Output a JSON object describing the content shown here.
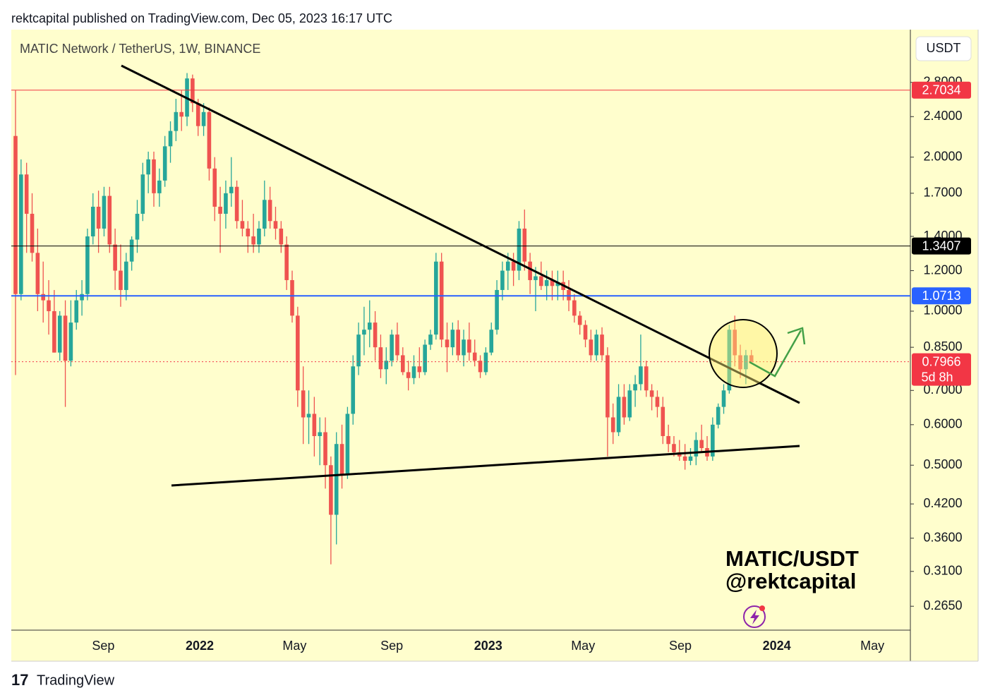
{
  "header": "rektcapital published on TradingView.com, Dec 05, 2023 16:17 UTC",
  "footer": "TradingView",
  "chart_data": {
    "type": "candlestick",
    "title": "MATIC Network / TetherUS, 1W, BINANCE",
    "currency": "USDT",
    "annotations": [
      "MATIC/USDT",
      "@rektcapital"
    ],
    "log": true,
    "up_color": "#26a69a",
    "down_color": "#ef5350",
    "ylim": [
      0.238,
      3.55
    ],
    "yticks": [
      {
        "value": 2.8,
        "label": "2.8000"
      },
      {
        "value": 2.4,
        "label": "2.4000"
      },
      {
        "value": 2,
        "label": "2.0000"
      },
      {
        "value": 1.7,
        "label": "1.7000"
      },
      {
        "value": 1.4,
        "label": "1.4000"
      },
      {
        "value": 1.2,
        "label": "1.2000"
      },
      {
        "value": 1,
        "label": "1.0000"
      },
      {
        "value": 0.85,
        "label": "0.8500"
      },
      {
        "value": 0.7,
        "label": "0.7000"
      },
      {
        "value": 0.6,
        "label": "0.6000"
      },
      {
        "value": 0.5,
        "label": "0.5000"
      },
      {
        "value": 0.42,
        "label": "0.4200"
      },
      {
        "value": 0.36,
        "label": "0.3600"
      },
      {
        "value": 0.31,
        "label": "0.3100"
      },
      {
        "value": 0.265,
        "label": "0.2650"
      }
    ],
    "xticks": [
      {
        "value": "2021-09",
        "label": "Sep"
      },
      {
        "value": "2022-01",
        "label": "2022"
      },
      {
        "value": "2022-05",
        "label": "May"
      },
      {
        "value": "2022-09",
        "label": "Sep"
      },
      {
        "value": "2023-01",
        "label": "2023"
      },
      {
        "value": "2023-05",
        "label": "May"
      },
      {
        "value": "2023-09",
        "label": "Sep"
      },
      {
        "value": "2024-01",
        "label": "2024"
      },
      {
        "value": "2024-05",
        "label": "May"
      }
    ],
    "levels": [
      {
        "value": 2.7034,
        "label": "2.7034",
        "color": "#f23645"
      },
      {
        "value": 1.3407,
        "label": "1.3407",
        "color": "#000000"
      },
      {
        "value": 1.0713,
        "label": "1.0713",
        "color": "#2962ff"
      }
    ],
    "last_price": {
      "value": 0.7966,
      "label": "0.7966",
      "countdown": "5d 8h",
      "color": "#f23645"
    },
    "ohlc": [
      [
        2.2,
        2.7,
        0.75,
        1.08
      ],
      [
        1.08,
        1.98,
        1.05,
        1.85
      ],
      [
        1.85,
        1.95,
        1.3,
        1.55
      ],
      [
        1.55,
        1.7,
        1.25,
        1.3
      ],
      [
        1.3,
        1.45,
        1.0,
        1.08
      ],
      [
        1.08,
        1.25,
        0.95,
        1.05
      ],
      [
        1.05,
        1.15,
        0.9,
        1.0
      ],
      [
        1.0,
        1.1,
        0.83,
        0.83
      ],
      [
        0.83,
        1.0,
        0.8,
        0.98
      ],
      [
        0.98,
        1.05,
        0.65,
        0.8
      ],
      [
        0.8,
        1.05,
        0.78,
        0.95
      ],
      [
        0.95,
        1.1,
        0.92,
        1.05
      ],
      [
        1.05,
        1.15,
        0.98,
        1.08
      ],
      [
        1.08,
        1.45,
        1.05,
        1.4
      ],
      [
        1.4,
        1.7,
        1.35,
        1.6
      ],
      [
        1.6,
        1.72,
        1.3,
        1.45
      ],
      [
        1.45,
        1.75,
        1.4,
        1.68
      ],
      [
        1.68,
        1.75,
        1.3,
        1.35
      ],
      [
        1.35,
        1.45,
        1.1,
        1.2
      ],
      [
        1.2,
        1.35,
        1.02,
        1.1
      ],
      [
        1.1,
        1.3,
        1.05,
        1.25
      ],
      [
        1.25,
        1.4,
        1.2,
        1.38
      ],
      [
        1.38,
        1.65,
        1.3,
        1.55
      ],
      [
        1.55,
        1.95,
        1.5,
        1.85
      ],
      [
        1.85,
        2.05,
        1.7,
        1.98
      ],
      [
        1.98,
        2.05,
        1.6,
        1.7
      ],
      [
        1.7,
        1.9,
        1.6,
        1.8
      ],
      [
        1.8,
        2.2,
        1.75,
        2.1
      ],
      [
        2.1,
        2.35,
        1.95,
        2.25
      ],
      [
        2.25,
        2.6,
        2.15,
        2.45
      ],
      [
        2.45,
        2.7,
        2.25,
        2.4
      ],
      [
        2.4,
        2.92,
        2.3,
        2.85
      ],
      [
        2.85,
        2.9,
        2.45,
        2.55
      ],
      [
        2.55,
        2.6,
        2.2,
        2.3
      ],
      [
        2.3,
        2.55,
        2.2,
        2.45
      ],
      [
        2.45,
        2.5,
        1.8,
        1.9
      ],
      [
        1.9,
        2.0,
        1.5,
        1.6
      ],
      [
        1.6,
        1.75,
        1.3,
        1.55
      ],
      [
        1.55,
        1.8,
        1.45,
        1.7
      ],
      [
        1.7,
        2.0,
        1.6,
        1.75
      ],
      [
        1.75,
        1.8,
        1.45,
        1.5
      ],
      [
        1.5,
        1.65,
        1.4,
        1.45
      ],
      [
        1.45,
        1.5,
        1.3,
        1.4
      ],
      [
        1.4,
        1.55,
        1.3,
        1.35
      ],
      [
        1.35,
        1.5,
        1.3,
        1.45
      ],
      [
        1.45,
        1.8,
        1.4,
        1.65
      ],
      [
        1.65,
        1.75,
        1.45,
        1.5
      ],
      [
        1.5,
        1.6,
        1.38,
        1.45
      ],
      [
        1.45,
        1.5,
        1.3,
        1.35
      ],
      [
        1.35,
        1.4,
        1.1,
        1.15
      ],
      [
        1.15,
        1.2,
        0.95,
        0.98
      ],
      [
        0.98,
        1.02,
        0.65,
        0.7
      ],
      [
        0.7,
        0.78,
        0.55,
        0.62
      ],
      [
        0.62,
        0.7,
        0.55,
        0.63
      ],
      [
        0.63,
        0.68,
        0.52,
        0.57
      ],
      [
        0.57,
        0.62,
        0.5,
        0.58
      ],
      [
        0.58,
        0.62,
        0.45,
        0.5
      ],
      [
        0.5,
        0.52,
        0.32,
        0.4
      ],
      [
        0.4,
        0.58,
        0.35,
        0.55
      ],
      [
        0.55,
        0.6,
        0.45,
        0.48
      ],
      [
        0.48,
        0.65,
        0.47,
        0.63
      ],
      [
        0.63,
        0.82,
        0.6,
        0.78
      ],
      [
        0.78,
        0.95,
        0.75,
        0.9
      ],
      [
        0.9,
        1.02,
        0.82,
        0.92
      ],
      [
        0.92,
        1.05,
        0.85,
        0.95
      ],
      [
        0.95,
        1.0,
        0.8,
        0.85
      ],
      [
        0.85,
        0.9,
        0.74,
        0.77
      ],
      [
        0.77,
        0.85,
        0.72,
        0.8
      ],
      [
        0.8,
        0.92,
        0.78,
        0.9
      ],
      [
        0.9,
        0.95,
        0.8,
        0.82
      ],
      [
        0.82,
        0.85,
        0.75,
        0.76
      ],
      [
        0.76,
        0.8,
        0.7,
        0.74
      ],
      [
        0.74,
        0.82,
        0.72,
        0.78
      ],
      [
        0.78,
        0.85,
        0.74,
        0.76
      ],
      [
        0.76,
        0.88,
        0.75,
        0.86
      ],
      [
        0.86,
        0.92,
        0.84,
        0.9
      ],
      [
        0.9,
        1.3,
        0.88,
        1.25
      ],
      [
        1.25,
        1.3,
        0.85,
        0.88
      ],
      [
        0.88,
        0.95,
        0.76,
        0.85
      ],
      [
        0.85,
        0.95,
        0.82,
        0.92
      ],
      [
        0.92,
        0.96,
        0.8,
        0.82
      ],
      [
        0.82,
        0.92,
        0.78,
        0.88
      ],
      [
        0.88,
        0.95,
        0.8,
        0.83
      ],
      [
        0.83,
        0.88,
        0.78,
        0.8
      ],
      [
        0.8,
        0.82,
        0.74,
        0.76
      ],
      [
        0.76,
        0.85,
        0.75,
        0.83
      ],
      [
        0.83,
        0.95,
        0.82,
        0.92
      ],
      [
        0.92,
        1.15,
        0.9,
        1.1
      ],
      [
        1.1,
        1.25,
        1.05,
        1.2
      ],
      [
        1.2,
        1.3,
        1.1,
        1.25
      ],
      [
        1.25,
        1.3,
        1.12,
        1.2
      ],
      [
        1.2,
        1.5,
        1.15,
        1.45
      ],
      [
        1.45,
        1.58,
        1.2,
        1.25
      ],
      [
        1.25,
        1.3,
        1.08,
        1.15
      ],
      [
        1.15,
        1.22,
        1.0,
        1.17
      ],
      [
        1.17,
        1.25,
        1.1,
        1.12
      ],
      [
        1.12,
        1.2,
        1.05,
        1.15
      ],
      [
        1.15,
        1.2,
        1.05,
        1.12
      ],
      [
        1.12,
        1.2,
        1.05,
        1.14
      ],
      [
        1.14,
        1.2,
        1.05,
        1.1
      ],
      [
        1.1,
        1.15,
        1.0,
        1.05
      ],
      [
        1.05,
        1.08,
        0.95,
        0.98
      ],
      [
        0.98,
        1.0,
        0.9,
        0.94
      ],
      [
        0.94,
        0.96,
        0.85,
        0.88
      ],
      [
        0.88,
        0.92,
        0.8,
        0.82
      ],
      [
        0.82,
        0.92,
        0.8,
        0.9
      ],
      [
        0.9,
        0.93,
        0.8,
        0.82
      ],
      [
        0.82,
        0.85,
        0.52,
        0.62
      ],
      [
        0.62,
        0.66,
        0.55,
        0.58
      ],
      [
        0.58,
        0.72,
        0.57,
        0.68
      ],
      [
        0.68,
        0.72,
        0.6,
        0.62
      ],
      [
        0.62,
        0.72,
        0.61,
        0.7
      ],
      [
        0.7,
        0.75,
        0.65,
        0.72
      ],
      [
        0.72,
        0.9,
        0.7,
        0.78
      ],
      [
        0.78,
        0.8,
        0.68,
        0.7
      ],
      [
        0.7,
        0.72,
        0.64,
        0.68
      ],
      [
        0.68,
        0.7,
        0.62,
        0.65
      ],
      [
        0.65,
        0.68,
        0.55,
        0.57
      ],
      [
        0.57,
        0.6,
        0.53,
        0.55
      ],
      [
        0.55,
        0.57,
        0.52,
        0.53
      ],
      [
        0.53,
        0.56,
        0.51,
        0.52
      ],
      [
        0.52,
        0.55,
        0.49,
        0.51
      ],
      [
        0.51,
        0.54,
        0.5,
        0.52
      ],
      [
        0.52,
        0.58,
        0.5,
        0.56
      ],
      [
        0.56,
        0.6,
        0.53,
        0.54
      ],
      [
        0.54,
        0.57,
        0.51,
        0.52
      ],
      [
        0.52,
        0.62,
        0.51,
        0.6
      ],
      [
        0.6,
        0.66,
        0.59,
        0.65
      ],
      [
        0.65,
        0.72,
        0.63,
        0.7
      ],
      [
        0.7,
        0.94,
        0.69,
        0.92
      ],
      [
        0.92,
        0.98,
        0.78,
        0.82
      ],
      [
        0.82,
        0.86,
        0.74,
        0.77
      ],
      [
        0.77,
        0.84,
        0.72,
        0.82
      ],
      [
        0.82,
        0.84,
        0.79,
        0.7966
      ]
    ]
  }
}
